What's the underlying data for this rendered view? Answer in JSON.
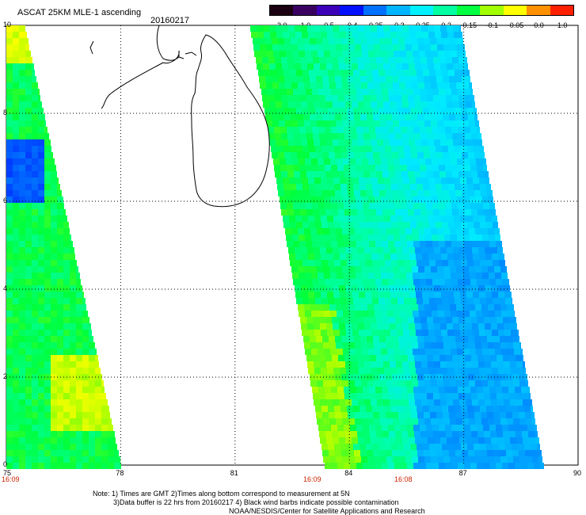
{
  "header": {
    "title": "ASCAT 25KM MLE-1 ascending",
    "date": "20160217"
  },
  "colorbar": {
    "labels": [
      "-3.0",
      "-1.0",
      "-0.5",
      "-0.4",
      "-0.35",
      "-0.3",
      "-0.25",
      "-0.2",
      "-0.15",
      "-0.1",
      "-0.05",
      "0.0",
      "1.0"
    ],
    "colors": [
      "#1a0010",
      "#3a0060",
      "#3b00b8",
      "#0010ff",
      "#0070ff",
      "#00b4ff",
      "#00f0ff",
      "#00ffa0",
      "#00ff40",
      "#a0ff00",
      "#ffff00",
      "#ff9000",
      "#ff2000"
    ]
  },
  "axes": {
    "x_ticks": [
      "75",
      "78",
      "81",
      "84",
      "87",
      "90"
    ],
    "y_ticks": [
      "0",
      "2",
      "4",
      "6",
      "8",
      "10"
    ]
  },
  "times": [
    "16:09",
    "16:09",
    "16:08"
  ],
  "footer": {
    "line1": "Note: 1) Times are GMT 2)Times along bottom correspond to measurement at 5N",
    "line2": "3)Data buffer is 22 hrs from 20160217 4) Black wind barbs indicate possible contamination",
    "line3": "NOAA/NESDIS/Center for Satellite Applications and Research"
  }
}
